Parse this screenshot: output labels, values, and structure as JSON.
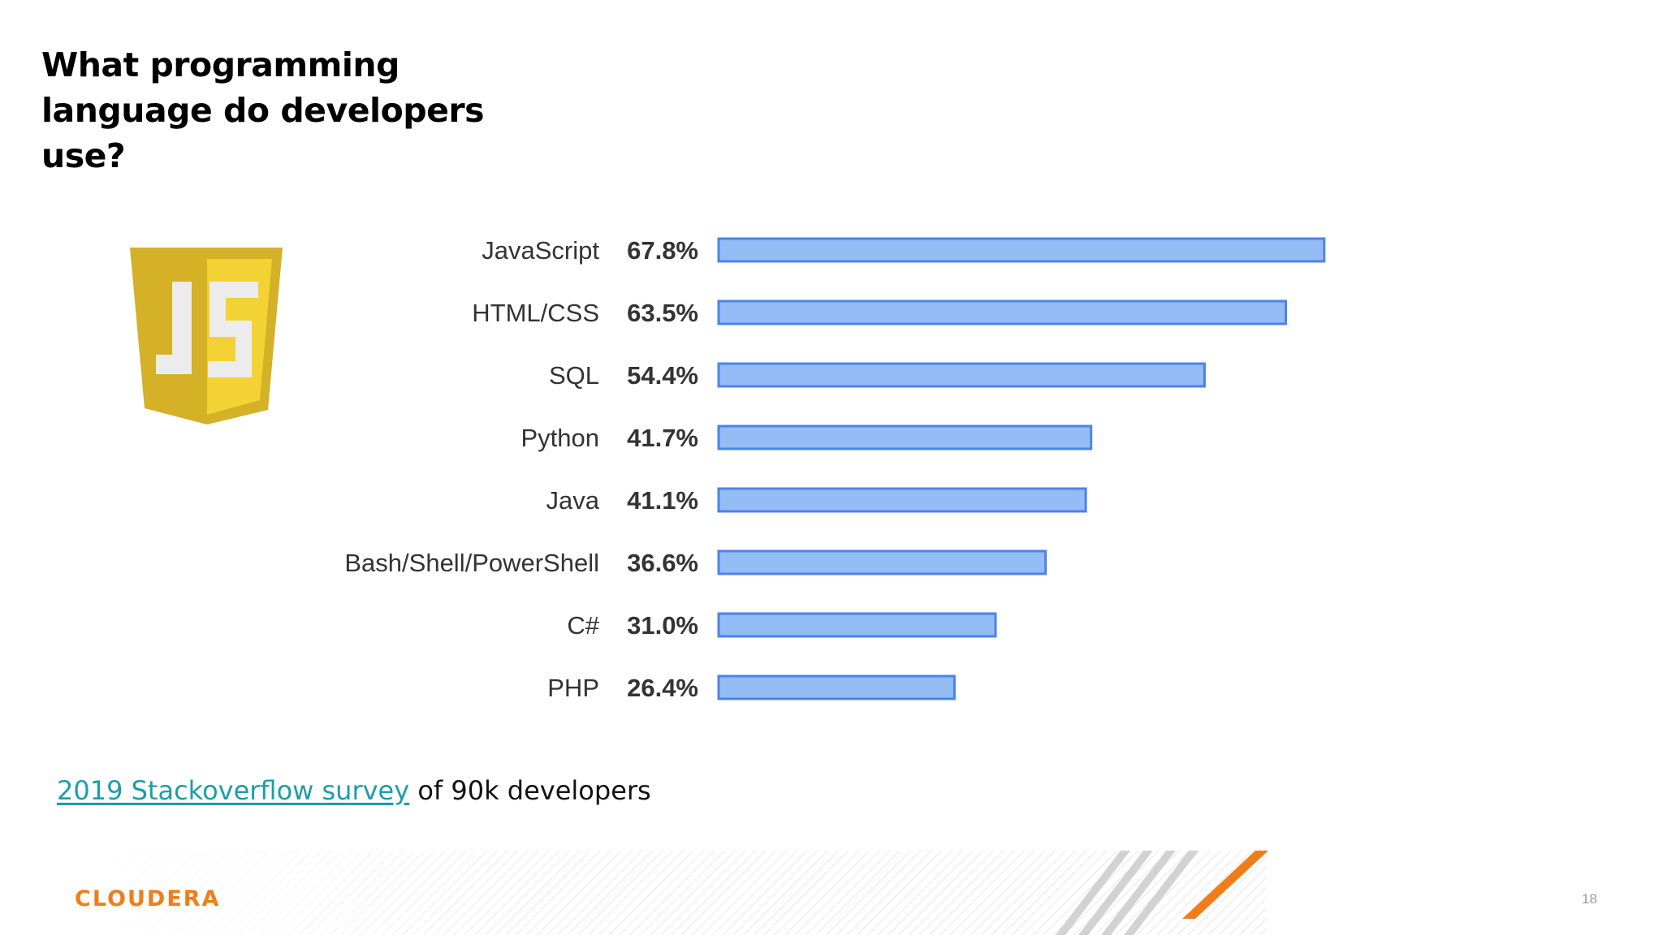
{
  "slide": {
    "title": "What programming language do developers use?",
    "footnote_link": "2019 Stackoverflow survey",
    "footnote_rest": " of 90k developers",
    "brand": "CLOUDERA",
    "page_number": "18"
  },
  "logo": {
    "text": "JS",
    "icon": "javascript-shield-logo"
  },
  "colors": {
    "bar_fill": "#94bcf5",
    "bar_stroke": "#4b83e8",
    "link": "#1b9ea8",
    "brand": "#f07d1a",
    "logo_gold": "#d4b126",
    "logo_gold_light": "#f3d334"
  },
  "chart_data": {
    "type": "bar",
    "orientation": "horizontal",
    "categories": [
      "JavaScript",
      "HTML/CSS",
      "SQL",
      "Python",
      "Java",
      "Bash/Shell/PowerShell",
      "C#",
      "PHP"
    ],
    "values": [
      67.8,
      63.5,
      54.4,
      41.7,
      41.1,
      36.6,
      31.0,
      26.4
    ],
    "value_labels": [
      "67.8%",
      "63.5%",
      "54.4%",
      "41.7%",
      "41.1%",
      "36.6%",
      "31.0%",
      "26.4%"
    ],
    "xlim": [
      0,
      100
    ],
    "grid": false,
    "legend": "none"
  }
}
